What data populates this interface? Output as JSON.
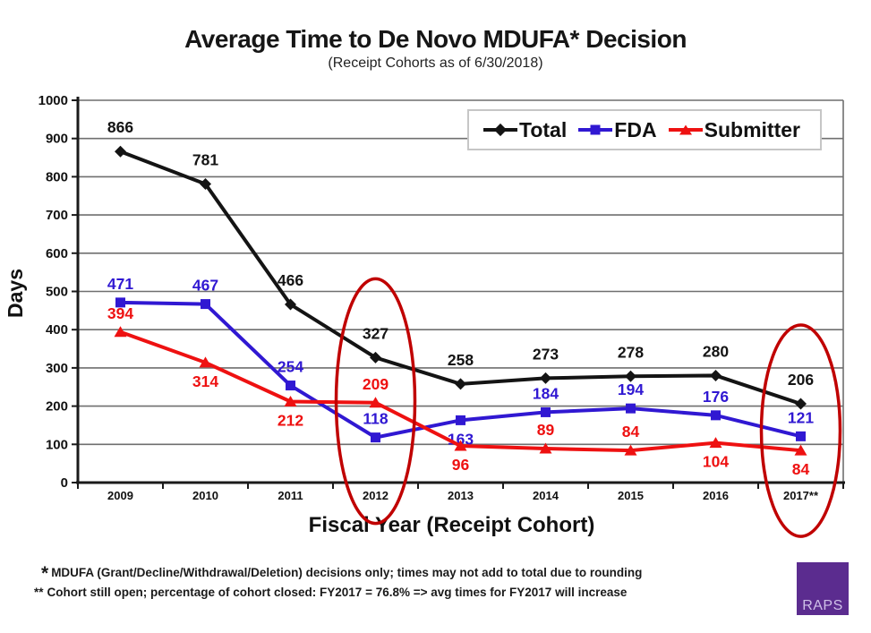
{
  "chart_data": {
    "type": "line",
    "title": "Average Time to De Novo MDUFA* Decision",
    "subtitle": "(Receipt Cohorts as of 6/30/2018)",
    "xlabel": "Fiscal Year (Receipt Cohort)",
    "ylabel": "Days",
    "ylim": [
      0,
      1000
    ],
    "ytick_step": 100,
    "grid": true,
    "legend_position": "top-right",
    "categories": [
      "2009",
      "2010",
      "2011",
      "2012",
      "2013",
      "2014",
      "2015",
      "2016",
      "2017**"
    ],
    "series": [
      {
        "name": "Total",
        "color": "#141414",
        "marker": "diamond",
        "values": [
          866,
          781,
          466,
          327,
          258,
          273,
          278,
          280,
          206
        ],
        "label_pos": [
          "above",
          "above",
          "above",
          "above",
          "above",
          "above",
          "above",
          "above",
          "above"
        ]
      },
      {
        "name": "FDA",
        "color": "#3018d2",
        "marker": "square",
        "values": [
          471,
          467,
          254,
          118,
          163,
          184,
          194,
          176,
          121
        ],
        "label_pos": [
          "above",
          "above",
          "above",
          "above",
          "below",
          "above",
          "above",
          "above",
          "above"
        ]
      },
      {
        "name": "Submitter",
        "color": "#ee1111",
        "marker": "triangle",
        "values": [
          394,
          314,
          212,
          209,
          96,
          89,
          84,
          104,
          84
        ],
        "label_pos": [
          "above",
          "below",
          "below",
          "above",
          "below",
          "above",
          "above",
          "below",
          "below"
        ]
      }
    ],
    "annotations": [
      {
        "type": "ellipse",
        "category": "2012",
        "color": "#c00000"
      },
      {
        "type": "ellipse",
        "category": "2017**",
        "color": "#c00000"
      }
    ]
  },
  "footnotes": [
    {
      "marker": "*",
      "text": "MDUFA (Grant/Decline/Withdrawal/Deletion) decisions only; times may not add to total due to rounding"
    },
    {
      "marker": "**",
      "text": "Cohort still open; percentage of cohort closed: FY2017 = 76.8% => avg times for FY2017 will increase"
    }
  ],
  "logo": {
    "text": "RAPS",
    "background": "#5b2c8f",
    "foreground": "#cfc0e8"
  }
}
